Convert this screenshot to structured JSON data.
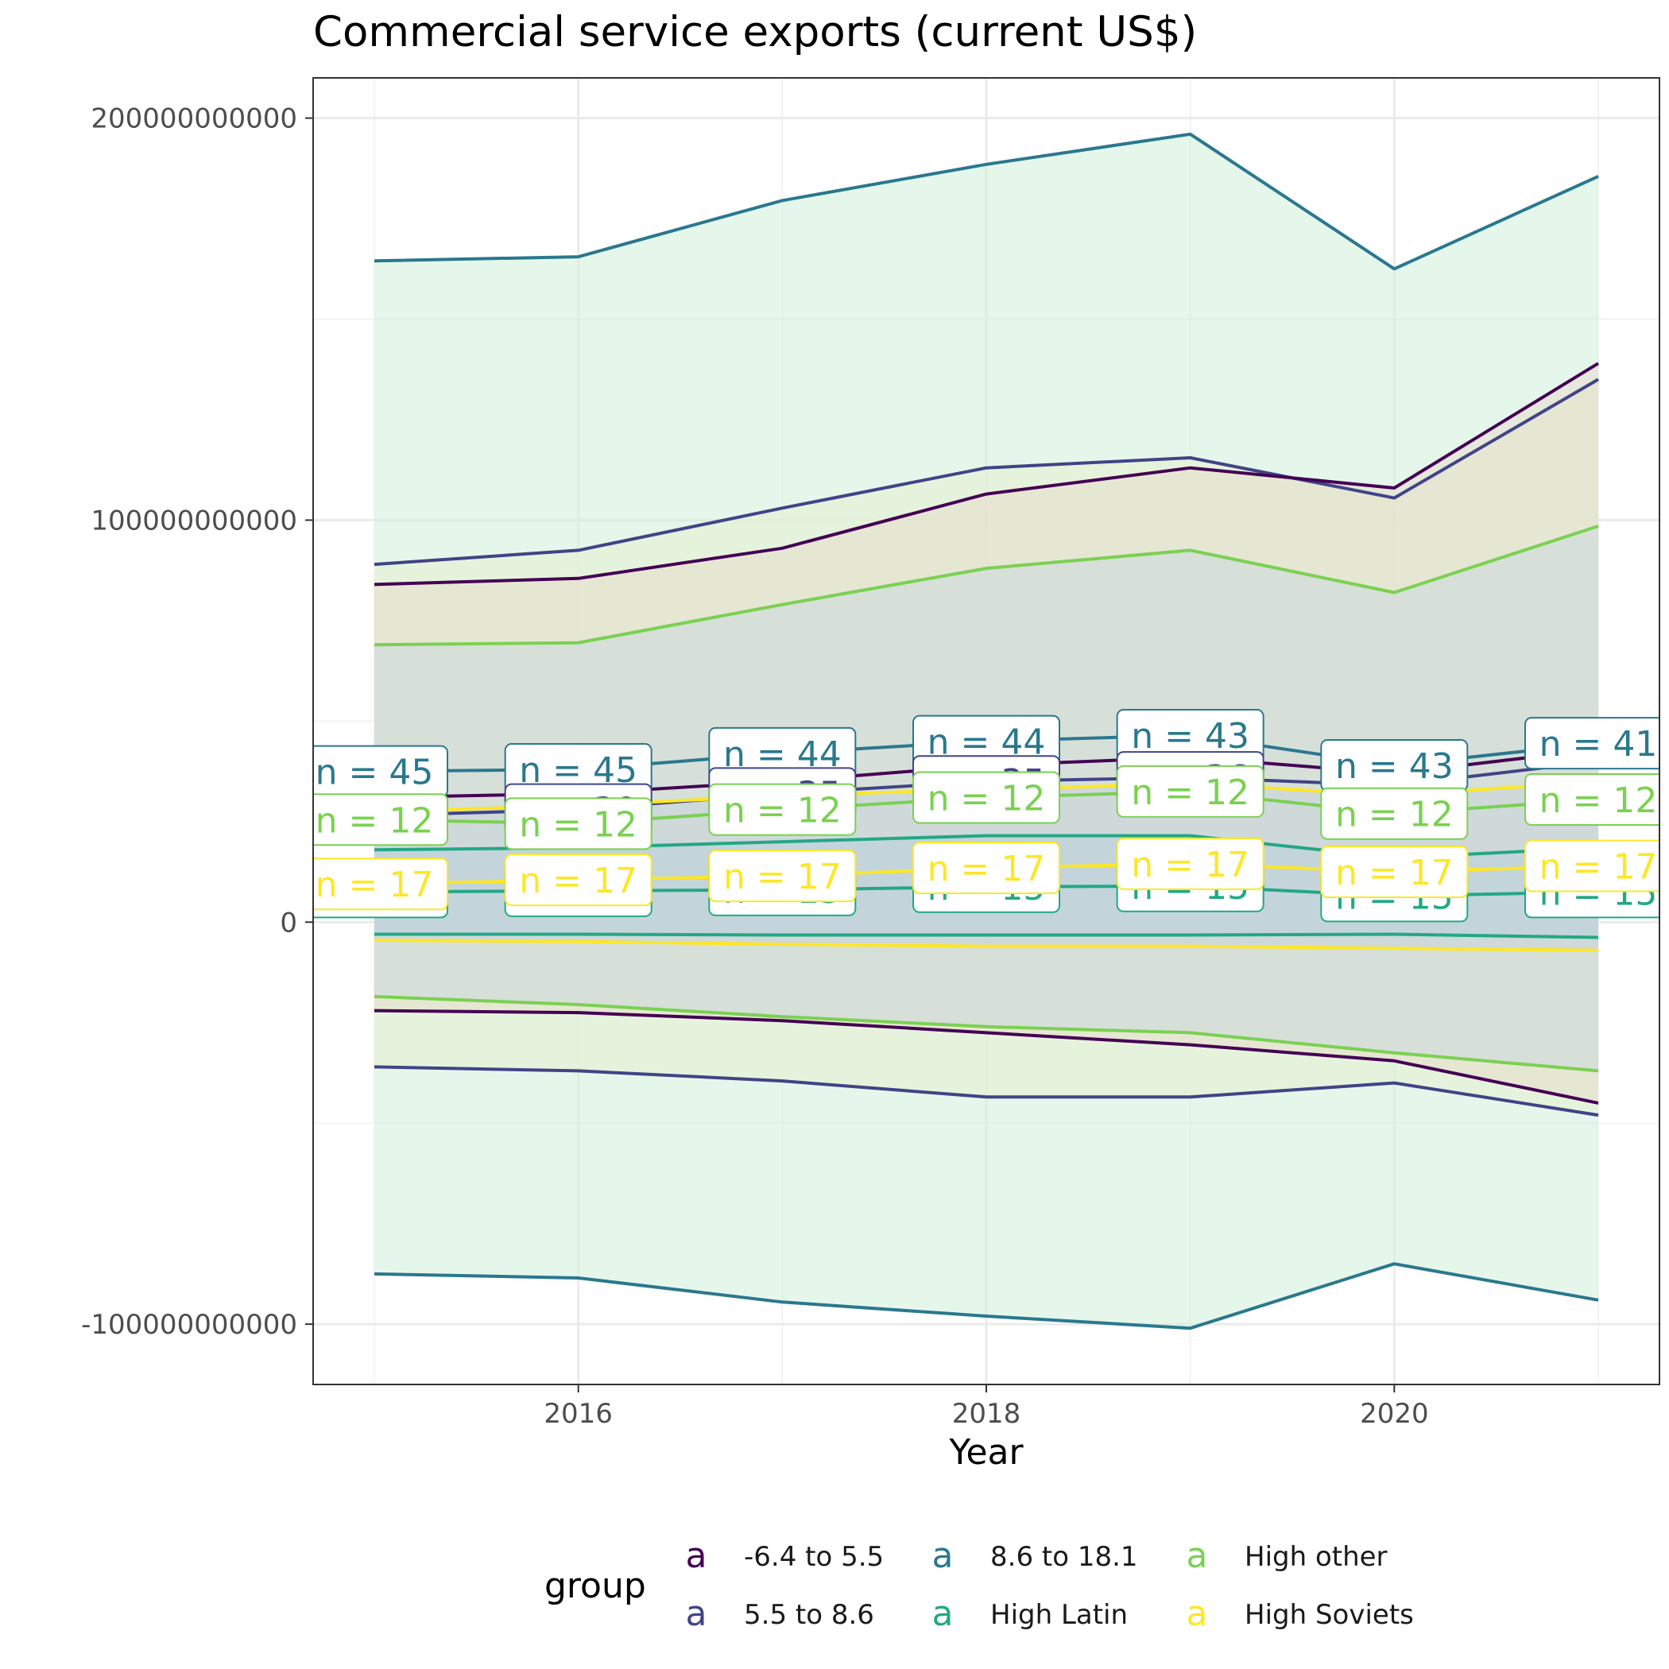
{
  "chart_data": {
    "type": "area",
    "title": "Commercial service exports (current US$)",
    "xlabel": "Year",
    "ylabel": "",
    "x": [
      2015,
      2016,
      2017,
      2018,
      2019,
      2020,
      2021
    ],
    "xlim": [
      2014.7,
      2021.3
    ],
    "ylim": [
      -115000000000,
      210000000000
    ],
    "x_ticks": [
      2016,
      2018,
      2020
    ],
    "y_ticks": [
      {
        "value": 200000000000,
        "label": "200000000000"
      },
      {
        "value": 100000000000,
        "label": "100000000000"
      },
      {
        "value": 0,
        "label": "0"
      },
      {
        "value": -100000000000,
        "label": "-100000000000"
      }
    ],
    "grid": true,
    "legend": {
      "title": "group",
      "position": "bottom",
      "key_glyph": "a",
      "entries": [
        {
          "name": "-6.4 to 5.5",
          "color": "#440154"
        },
        {
          "name": "5.5 to 8.6",
          "color": "#414487"
        },
        {
          "name": "8.6 to 18.1",
          "color": "#2a788e"
        },
        {
          "name": "High Latin",
          "color": "#22a884"
        },
        {
          "name": "High other",
          "color": "#7ad151"
        },
        {
          "name": "High Soviets",
          "color": "#fde725"
        }
      ]
    },
    "series": [
      {
        "name": "8.6 to 18.1",
        "color": "#2a788e",
        "fill": "#d0f0da",
        "opacity": 0.55,
        "mean": [
          37500000000,
          38000000000,
          42000000000,
          45000000000,
          46500000000,
          39000000000,
          44500000000
        ],
        "upper": [
          164500000000,
          165500000000,
          179500000000,
          188500000000,
          196000000000,
          162500000000,
          185500000000
        ],
        "lower": [
          -87500000000,
          -88500000000,
          -94500000000,
          -98000000000,
          -101000000000,
          -85000000000,
          -94000000000
        ],
        "n": [
          "45",
          "45",
          "44",
          "44",
          "43",
          "43",
          "41"
        ]
      },
      {
        "name": "5.5 to 8.6",
        "color": "#414487",
        "fill": "#e8f0d0",
        "opacity": 0.55,
        "mean": [
          26500000000,
          28000000000,
          32000000000,
          35000000000,
          36000000000,
          34000000000,
          40000000000
        ],
        "upper": [
          89000000000,
          92500000000,
          103000000000,
          113000000000,
          115500000000,
          105500000000,
          135000000000
        ],
        "lower": [
          -36000000000,
          -37000000000,
          -39500000000,
          -43500000000,
          -43500000000,
          -40000000000,
          -48000000000
        ],
        "n": [
          "",
          "30",
          "35",
          "35",
          "36",
          "",
          ""
        ]
      },
      {
        "name": "-6.4 to 5.5",
        "color": "#440154",
        "fill": "#e6dccc",
        "opacity": 0.55,
        "mean": [
          31000000000,
          32000000000,
          35000000000,
          39000000000,
          41000000000,
          37000000000,
          43000000000
        ],
        "upper": [
          84000000000,
          85500000000,
          93000000000,
          106500000000,
          113000000000,
          108000000000,
          139000000000
        ],
        "lower": [
          -22000000000,
          -22500000000,
          -24500000000,
          -27500000000,
          -30500000000,
          -34500000000,
          -45000000000
        ],
        "n": [
          "",
          "",
          "",
          "",
          "",
          "",
          ""
        ]
      },
      {
        "name": "High other",
        "color": "#7ad151",
        "fill": "#c8d8e0",
        "opacity": 0.5,
        "mean": [
          25500000000,
          24500000000,
          28000000000,
          31000000000,
          32500000000,
          27000000000,
          30500000000
        ],
        "upper": [
          69000000000,
          69500000000,
          79000000000,
          88000000000,
          92500000000,
          82000000000,
          98500000000
        ],
        "lower": [
          -18500000000,
          -20500000000,
          -23500000000,
          -26000000000,
          -27500000000,
          -32500000000,
          -37000000000
        ],
        "n": [
          "12",
          "12",
          "12",
          "12",
          "12",
          "12",
          "12"
        ]
      },
      {
        "name": "High Latin",
        "color": "#22a884",
        "fill": "#a0c8e0",
        "opacity": 0.25,
        "mean": [
          7500000000,
          7800000000,
          8000000000,
          8800000000,
          9000000000,
          6500000000,
          7500000000
        ],
        "upper": [
          18000000000,
          18500000000,
          20000000000,
          21500000000,
          21500000000,
          16000000000,
          18500000000
        ],
        "lower": [
          -3000000000,
          -3000000000,
          -3200000000,
          -3200000000,
          -3200000000,
          -3000000000,
          -3800000000
        ],
        "n": [
          "15",
          "15",
          "15",
          "15",
          "15",
          "15",
          "15"
        ]
      },
      {
        "name": "High Soviets",
        "color": "#fde725",
        "fill": "#b8c8e0",
        "opacity": 0.25,
        "mean": [
          9500000000,
          10500000000,
          11500000000,
          13500000000,
          14500000000,
          12500000000,
          14000000000
        ],
        "upper": [
          27500000000,
          29000000000,
          31500000000,
          33000000000,
          34500000000,
          31500000000,
          35000000000
        ],
        "lower": [
          -4500000000,
          -4800000000,
          -5500000000,
          -6000000000,
          -6000000000,
          -6500000000,
          -7000000000
        ],
        "n": [
          "17",
          "17",
          "17",
          "17",
          "17",
          "17",
          "17"
        ]
      }
    ]
  }
}
